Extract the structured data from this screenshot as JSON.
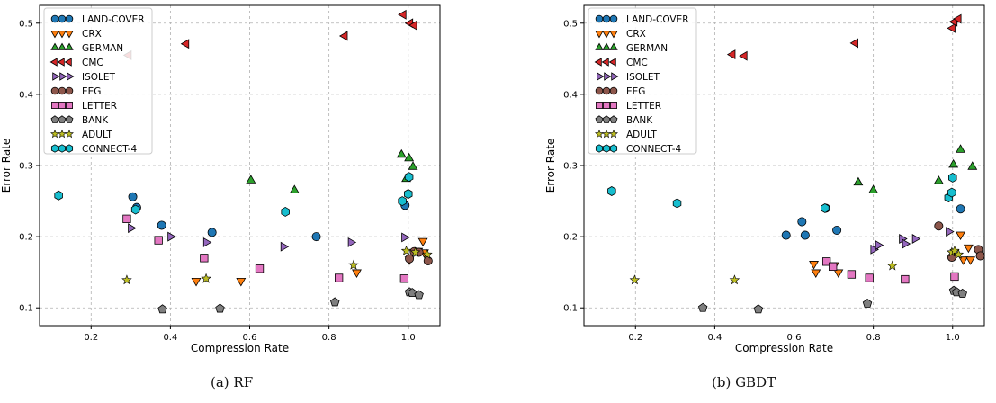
{
  "chart_data": [
    {
      "type": "scatter",
      "caption": "(a) RF",
      "xlabel": "Compression Rate",
      "ylabel": "Error Rate",
      "xlim": [
        0.07,
        1.08
      ],
      "ylim": [
        0.075,
        0.525
      ],
      "xticks": [
        "0.2",
        "0.4",
        "0.6",
        "0.8",
        "1.0"
      ],
      "xtick_values": [
        0.2,
        0.4,
        0.6,
        0.8,
        1.0
      ],
      "yticks": [
        "0.1",
        "0.2",
        "0.3",
        "0.4",
        "0.5"
      ],
      "ytick_values": [
        0.1,
        0.2,
        0.3,
        0.4,
        0.5
      ],
      "grid": true,
      "legend_position": "top-left",
      "series": [
        {
          "name": "LAND-COVER",
          "marker": "circle",
          "color": "#1f77b4",
          "points": [
            [
              0.305,
              0.256
            ],
            [
              0.315,
              0.241
            ],
            [
              0.378,
              0.216
            ],
            [
              0.505,
              0.206
            ],
            [
              0.768,
              0.2
            ],
            [
              0.992,
              0.244
            ]
          ]
        },
        {
          "name": "CRX",
          "marker": "triangle-down",
          "color": "#ff7f0e",
          "points": [
            [
              0.465,
              0.138
            ],
            [
              0.578,
              0.138
            ],
            [
              0.87,
              0.15
            ],
            [
              1.003,
              0.168
            ],
            [
              1.025,
              0.18
            ],
            [
              1.037,
              0.194
            ],
            [
              1.04,
              0.178
            ]
          ]
        },
        {
          "name": "GERMAN",
          "marker": "triangle-up",
          "color": "#2ca02c",
          "points": [
            [
              0.603,
              0.279
            ],
            [
              0.713,
              0.265
            ],
            [
              0.983,
              0.315
            ],
            [
              0.995,
              0.281
            ],
            [
              1.002,
              0.31
            ],
            [
              1.012,
              0.298
            ]
          ]
        },
        {
          "name": "CMC",
          "marker": "triangle-left",
          "color": "#d62728",
          "points": [
            [
              0.295,
              0.455
            ],
            [
              0.44,
              0.471
            ],
            [
              0.84,
              0.482
            ],
            [
              0.988,
              0.512
            ],
            [
              1.005,
              0.5
            ],
            [
              1.015,
              0.497
            ]
          ]
        },
        {
          "name": "ISOLET",
          "marker": "triangle-right",
          "color": "#9467bd",
          "points": [
            [
              0.3,
              0.212
            ],
            [
              0.4,
              0.2
            ],
            [
              0.49,
              0.192
            ],
            [
              0.685,
              0.186
            ],
            [
              0.855,
              0.192
            ],
            [
              0.99,
              0.199
            ]
          ]
        },
        {
          "name": "EEG",
          "marker": "circle",
          "color": "#8c564b",
          "points": [
            [
              1.003,
              0.169
            ],
            [
              1.015,
              0.179
            ],
            [
              1.027,
              0.178
            ],
            [
              1.05,
              0.166
            ]
          ]
        },
        {
          "name": "LETTER",
          "marker": "square",
          "color": "#e377c2",
          "points": [
            [
              0.29,
              0.225
            ],
            [
              0.37,
              0.195
            ],
            [
              0.485,
              0.17
            ],
            [
              0.625,
              0.155
            ],
            [
              0.825,
              0.142
            ],
            [
              0.99,
              0.141
            ]
          ]
        },
        {
          "name": "BANK",
          "marker": "pentagon",
          "color": "#7f7f7f",
          "points": [
            [
              0.38,
              0.098
            ],
            [
              0.525,
              0.099
            ],
            [
              0.815,
              0.108
            ],
            [
              1.003,
              0.122
            ],
            [
              1.01,
              0.121
            ],
            [
              1.027,
              0.118
            ]
          ]
        },
        {
          "name": "ADULT",
          "marker": "star",
          "color": "#bcbd22",
          "points": [
            [
              0.29,
              0.139
            ],
            [
              0.49,
              0.141
            ],
            [
              0.862,
              0.16
            ],
            [
              0.995,
              0.18
            ],
            [
              1.018,
              0.178
            ],
            [
              1.048,
              0.175
            ]
          ]
        },
        {
          "name": "CONNECT-4",
          "marker": "hexagon",
          "color": "#17becf",
          "points": [
            [
              0.118,
              0.258
            ],
            [
              0.312,
              0.238
            ],
            [
              0.69,
              0.235
            ],
            [
              0.985,
              0.25
            ],
            [
              1.0,
              0.26
            ],
            [
              1.002,
              0.284
            ]
          ]
        }
      ]
    },
    {
      "type": "scatter",
      "caption": "(b) GBDT",
      "xlabel": "Compression Rate",
      "ylabel": "Error Rate",
      "xlim": [
        0.07,
        1.08
      ],
      "ylim": [
        0.075,
        0.525
      ],
      "xticks": [
        "0.2",
        "0.4",
        "0.6",
        "0.8",
        "1.0"
      ],
      "xtick_values": [
        0.2,
        0.4,
        0.6,
        0.8,
        1.0
      ],
      "yticks": [
        "0.1",
        "0.2",
        "0.3",
        "0.4",
        "0.5"
      ],
      "ytick_values": [
        0.1,
        0.2,
        0.3,
        0.4,
        0.5
      ],
      "grid": true,
      "legend_position": "top-left",
      "series": [
        {
          "name": "LAND-COVER",
          "marker": "circle",
          "color": "#1f77b4",
          "points": [
            [
              0.58,
              0.202
            ],
            [
              0.62,
              0.221
            ],
            [
              0.628,
              0.202
            ],
            [
              0.68,
              0.24
            ],
            [
              0.708,
              0.209
            ],
            [
              1.02,
              0.239
            ]
          ]
        },
        {
          "name": "CRX",
          "marker": "triangle-down",
          "color": "#ff7f0e",
          "points": [
            [
              0.65,
              0.162
            ],
            [
              0.655,
              0.15
            ],
            [
              0.702,
              0.16
            ],
            [
              0.712,
              0.15
            ],
            [
              1.02,
              0.203
            ],
            [
              1.027,
              0.168
            ],
            [
              1.04,
              0.185
            ],
            [
              1.045,
              0.168
            ]
          ]
        },
        {
          "name": "GERMAN",
          "marker": "triangle-up",
          "color": "#2ca02c",
          "points": [
            [
              0.762,
              0.276
            ],
            [
              0.8,
              0.265
            ],
            [
              0.965,
              0.278
            ],
            [
              1.002,
              0.301
            ],
            [
              1.02,
              0.322
            ],
            [
              1.05,
              0.298
            ]
          ]
        },
        {
          "name": "CMC",
          "marker": "triangle-left",
          "color": "#d62728",
          "points": [
            [
              0.445,
              0.456
            ],
            [
              0.475,
              0.454
            ],
            [
              0.755,
              0.472
            ],
            [
              1.0,
              0.493
            ],
            [
              1.005,
              0.502
            ],
            [
              1.015,
              0.506
            ]
          ]
        },
        {
          "name": "ISOLET",
          "marker": "triangle-right",
          "color": "#9467bd",
          "points": [
            [
              0.8,
              0.182
            ],
            [
              0.812,
              0.188
            ],
            [
              0.872,
              0.197
            ],
            [
              0.88,
              0.19
            ],
            [
              0.905,
              0.197
            ],
            [
              0.99,
              0.207
            ]
          ]
        },
        {
          "name": "EEG",
          "marker": "circle",
          "color": "#8c564b",
          "points": [
            [
              0.965,
              0.215
            ],
            [
              0.998,
              0.171
            ],
            [
              1.065,
              0.182
            ],
            [
              1.07,
              0.173
            ]
          ]
        },
        {
          "name": "LETTER",
          "marker": "square",
          "color": "#e377c2",
          "points": [
            [
              0.682,
              0.165
            ],
            [
              0.698,
              0.158
            ],
            [
              0.745,
              0.147
            ],
            [
              0.79,
              0.142
            ],
            [
              0.88,
              0.14
            ],
            [
              1.005,
              0.144
            ]
          ]
        },
        {
          "name": "BANK",
          "marker": "pentagon",
          "color": "#7f7f7f",
          "points": [
            [
              0.37,
              0.1
            ],
            [
              0.51,
              0.098
            ],
            [
              0.785,
              0.106
            ],
            [
              1.003,
              0.124
            ],
            [
              1.01,
              0.122
            ],
            [
              1.025,
              0.12
            ]
          ]
        },
        {
          "name": "ADULT",
          "marker": "star",
          "color": "#bcbd22",
          "points": [
            [
              0.198,
              0.139
            ],
            [
              0.45,
              0.139
            ],
            [
              0.848,
              0.159
            ],
            [
              0.998,
              0.178
            ],
            [
              1.005,
              0.18
            ],
            [
              1.015,
              0.175
            ]
          ]
        },
        {
          "name": "CONNECT-4",
          "marker": "hexagon",
          "color": "#17becf",
          "points": [
            [
              0.14,
              0.264
            ],
            [
              0.305,
              0.247
            ],
            [
              0.678,
              0.24
            ],
            [
              0.99,
              0.255
            ],
            [
              0.998,
              0.262
            ],
            [
              1.0,
              0.283
            ]
          ]
        }
      ]
    }
  ]
}
